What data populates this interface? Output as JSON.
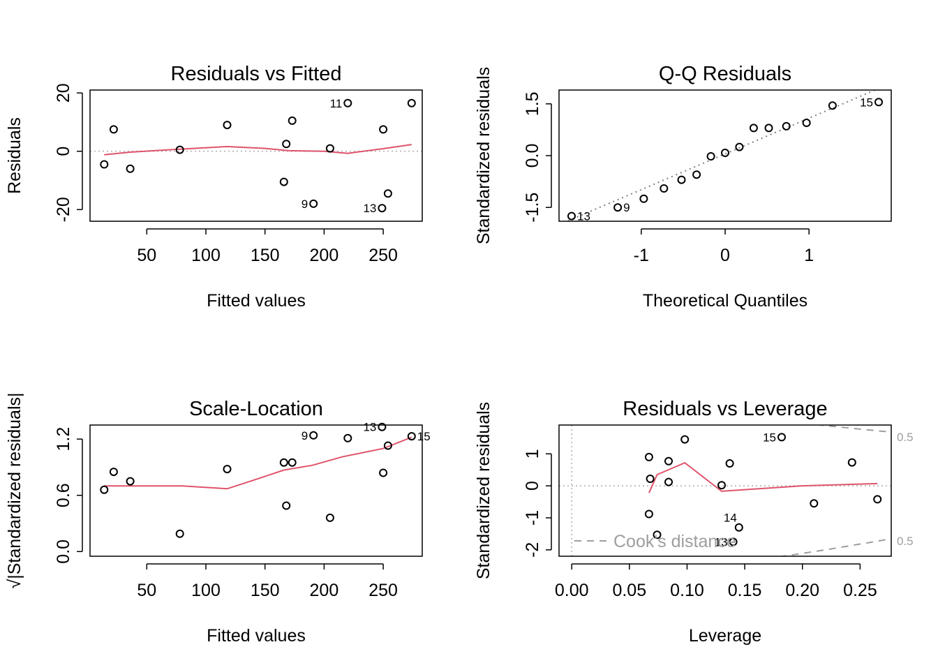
{
  "colors": {
    "smooth": "#DF536B",
    "reference": "#BEBEBE",
    "cook": "#9E9E9E",
    "points": "#000000"
  },
  "chart_data": [
    {
      "type": "scatter",
      "title": "Residuals vs Fitted",
      "xlabel": "Fitted values",
      "ylabel": "Residuals",
      "xlim": [
        2,
        283
      ],
      "ylim": [
        -24,
        21
      ],
      "xticks": [
        50,
        100,
        150,
        200,
        250
      ],
      "yticks": [
        -20,
        0,
        20
      ],
      "x": [
        14,
        22,
        36,
        78,
        118,
        166,
        168,
        173,
        191,
        205,
        220,
        250,
        254,
        249,
        274
      ],
      "y": [
        -4.5,
        7.5,
        -6,
        0.5,
        9,
        -10.5,
        2.5,
        10.5,
        -18,
        1,
        16.5,
        7.5,
        -14.5,
        -19.5,
        16.5
      ],
      "point_labels": [
        {
          "index": 8,
          "text": "9"
        },
        {
          "index": 10,
          "text": "11"
        },
        {
          "index": 13,
          "text": "13"
        }
      ],
      "smooth": {
        "x": [
          14,
          36,
          60,
          90,
          118,
          150,
          170,
          200,
          220,
          250,
          274
        ],
        "y": [
          -1.2,
          -0.3,
          0.3,
          1,
          1.6,
          1,
          0.2,
          0,
          -0.7,
          0.9,
          2.3
        ]
      },
      "hline": 0
    },
    {
      "type": "scatter",
      "title": "Q-Q Residuals",
      "xlabel": "Theoretical Quantiles",
      "ylabel": "Standardized residuals",
      "xlim": [
        -1.98,
        1.98
      ],
      "ylim": [
        -1.9,
        1.9
      ],
      "xticks": [
        -1,
        0,
        1
      ],
      "yticks": [
        -1.5,
        0.0,
        1.5
      ],
      "ytick_labels": [
        "-1.5",
        "0.0",
        "1.5"
      ],
      "x": [
        -1.83,
        -1.28,
        -0.97,
        -0.73,
        -0.52,
        -0.34,
        -0.17,
        0.0,
        0.17,
        0.34,
        0.52,
        0.73,
        0.97,
        1.28,
        1.83
      ],
      "y": [
        -1.75,
        -1.5,
        -1.25,
        -0.95,
        -0.7,
        -0.55,
        -0.02,
        0.08,
        0.25,
        0.8,
        0.8,
        0.85,
        0.95,
        1.45,
        1.55
      ],
      "point_labels": [
        {
          "index": 0,
          "text": "13"
        },
        {
          "index": 1,
          "text": "9"
        },
        {
          "index": 14,
          "text": "15"
        }
      ],
      "qqline": {
        "x": [
          -1.98,
          1.98
        ],
        "y": [
          -2.0,
          2.1
        ]
      }
    },
    {
      "type": "scatter",
      "title": "Scale-Location",
      "xlabel": "Fitted values",
      "ylabel": "√|Standardized residuals|",
      "xlim": [
        2,
        283
      ],
      "ylim": [
        -0.05,
        1.35
      ],
      "xticks": [
        50,
        100,
        150,
        200,
        250
      ],
      "yticks": [
        0.0,
        0.6,
        1.2
      ],
      "ytick_labels": [
        "0.0",
        "0.6",
        "1.2"
      ],
      "x": [
        14,
        22,
        36,
        78,
        118,
        166,
        168,
        173,
        191,
        205,
        220,
        250,
        254,
        249,
        274
      ],
      "y": [
        0.66,
        0.85,
        0.75,
        0.19,
        0.88,
        0.95,
        0.49,
        0.95,
        1.24,
        0.36,
        1.21,
        0.84,
        1.13,
        1.33,
        1.23
      ],
      "point_labels": [
        {
          "index": 8,
          "text": "9"
        },
        {
          "index": 13,
          "text": "13"
        },
        {
          "index": 14,
          "text": "15"
        }
      ],
      "smooth": {
        "x": [
          14,
          50,
          80,
          118,
          140,
          166,
          190,
          215,
          250,
          274
        ],
        "y": [
          0.7,
          0.7,
          0.7,
          0.67,
          0.76,
          0.87,
          0.92,
          1.01,
          1.1,
          1.22
        ]
      }
    },
    {
      "type": "scatter",
      "title": "Residuals vs Leverage",
      "xlabel": "Leverage",
      "ylabel": "Standardized residuals",
      "xlim": [
        -0.011,
        0.277
      ],
      "ylim": [
        -2.2,
        1.9
      ],
      "xticks": [
        0.0,
        0.05,
        0.1,
        0.15,
        0.2,
        0.25
      ],
      "xtick_labels": [
        "0.00",
        "0.05",
        "0.10",
        "0.15",
        "0.20",
        "0.25"
      ],
      "yticks": [
        -2,
        -1,
        0,
        1
      ],
      "x": [
        0.067,
        0.068,
        0.067,
        0.074,
        0.084,
        0.084,
        0.098,
        0.13,
        0.137,
        0.14,
        0.145,
        0.182,
        0.21,
        0.243,
        0.265
      ],
      "y": [
        0.9,
        0.22,
        -0.88,
        -1.53,
        0.77,
        0.12,
        1.45,
        0.02,
        0.7,
        -1.75,
        -1.3,
        1.52,
        -0.55,
        0.73,
        -0.42
      ],
      "point_labels": [
        {
          "index": 9,
          "text": "13"
        },
        {
          "index": 10,
          "text": "14"
        },
        {
          "index": 11,
          "text": "15"
        }
      ],
      "smooth": {
        "x": [
          0.067,
          0.074,
          0.098,
          0.13,
          0.15,
          0.2,
          0.265
        ],
        "y": [
          -0.22,
          0.35,
          0.72,
          -0.17,
          -0.12,
          0.0,
          0.07
        ]
      },
      "hline": 0,
      "vline": 0,
      "cooks_distance": {
        "legend": "Cook's distance",
        "level_labels": [
          "0.5",
          "0.5"
        ],
        "upper": {
          "x": [
            0.18,
            0.22,
            0.265,
            0.277
          ],
          "y": [
            2.1,
            1.88,
            1.72,
            1.68
          ]
        },
        "lower": {
          "x": [
            0.18,
            0.22,
            0.265,
            0.277
          ],
          "y": [
            -2.22,
            -2.0,
            -1.73,
            -1.65
          ]
        }
      }
    }
  ]
}
